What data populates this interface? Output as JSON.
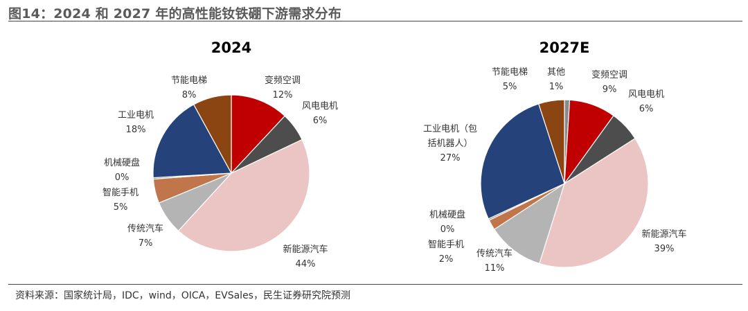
{
  "figure_title": "图14：2024 和 2027 年的高性能钕铁硼下游需求分布",
  "source": "资料来源：国家统计局，IDC，wind，OICA，EVSales，民生证券研究院预测",
  "colors": {
    "变频空调": "#c00000",
    "风电电机": "#4d4d4d",
    "新能源汽车": "#ebc4c4",
    "传统汽车": "#b4b4b4",
    "智能手机": "#c0764a",
    "机械硬盘": "#8a8a8a",
    "工业电机": "#25427a",
    "节能电梯": "#8b4513",
    "其他": "#8a8a8a"
  },
  "chart_data": [
    {
      "type": "pie",
      "title": "2024",
      "slices": [
        {
          "key": "变频空调",
          "label_lines": [
            "变频空调"
          ],
          "value": 12,
          "display": "12%"
        },
        {
          "key": "风电电机",
          "label_lines": [
            "风电电机"
          ],
          "value": 6,
          "display": "6%"
        },
        {
          "key": "新能源汽车",
          "label_lines": [
            "新能源汽车"
          ],
          "value": 44,
          "display": "44%"
        },
        {
          "key": "传统汽车",
          "label_lines": [
            "传统汽车"
          ],
          "value": 7,
          "display": "7%"
        },
        {
          "key": "智能手机",
          "label_lines": [
            "智能手机"
          ],
          "value": 5,
          "display": "5%"
        },
        {
          "key": "机械硬盘",
          "label_lines": [
            "机械硬盘"
          ],
          "value": 0.3,
          "display": "0%"
        },
        {
          "key": "工业电机",
          "label_lines": [
            "工业电机"
          ],
          "value": 18,
          "display": "18%"
        },
        {
          "key": "节能电梯",
          "label_lines": [
            "节能电梯"
          ],
          "value": 8,
          "display": "8%"
        }
      ]
    },
    {
      "type": "pie",
      "title": "2027E",
      "slices": [
        {
          "key": "其他",
          "label_lines": [
            "其他"
          ],
          "value": 1,
          "display": "1%"
        },
        {
          "key": "变频空调",
          "label_lines": [
            "变频空调"
          ],
          "value": 9,
          "display": "9%"
        },
        {
          "key": "风电电机",
          "label_lines": [
            "风电电机"
          ],
          "value": 6,
          "display": "6%"
        },
        {
          "key": "新能源汽车",
          "label_lines": [
            "新能源汽车"
          ],
          "value": 39,
          "display": "39%"
        },
        {
          "key": "传统汽车",
          "label_lines": [
            "传统汽车"
          ],
          "value": 11,
          "display": "11%"
        },
        {
          "key": "智能手机",
          "label_lines": [
            "智能手机"
          ],
          "value": 2,
          "display": "2%"
        },
        {
          "key": "机械硬盘",
          "label_lines": [
            "机械硬盘"
          ],
          "value": 0.3,
          "display": "0%"
        },
        {
          "key": "工业电机",
          "label_lines": [
            "工业电机（包",
            "括机器人）"
          ],
          "value": 27,
          "display": "27%"
        },
        {
          "key": "节能电梯",
          "label_lines": [
            "节能电梯"
          ],
          "value": 5,
          "display": "5%"
        }
      ]
    }
  ]
}
